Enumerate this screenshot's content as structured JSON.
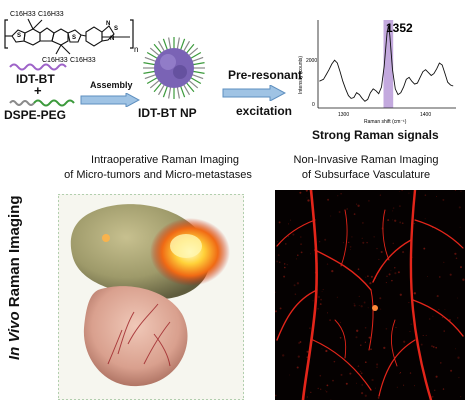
{
  "chemistry": {
    "alkyl_chains": [
      "C16H33",
      "C16H33",
      "C16H33",
      "C16H33"
    ],
    "repeat_unit": "n"
  },
  "labels": {
    "idt_bt": "IDT-BT",
    "plus": "+",
    "dspe_peg": "DSPE-PEG",
    "assembly": "Assembly",
    "nanoparticle": "IDT-BT NP",
    "pre_resonant_line1": "Pre-resonant",
    "pre_resonant_line2": "excitation",
    "strong_raman": "Strong Raman signals"
  },
  "spectrum": {
    "peak_label": "1352",
    "ylabel": "Intensity (counts)",
    "xlabel": "Raman shift (cm⁻¹)",
    "y_ticks": [
      "2000",
      "0"
    ],
    "x_ticks": [
      "1300",
      "1400"
    ]
  },
  "chart_data": {
    "type": "line",
    "xlabel": "Raman shift (cm⁻¹)",
    "ylabel": "Intensity (counts)",
    "xlim": [
      1250,
      1450
    ],
    "ylim": [
      -200,
      4400
    ],
    "highlight_band": [
      1345,
      1359
    ],
    "annotations": [
      "1352"
    ],
    "series": [
      {
        "x": [
          1252,
          1258,
          1262,
          1266,
          1270,
          1274,
          1278,
          1282,
          1286,
          1290,
          1294,
          1298,
          1302,
          1306,
          1310,
          1314,
          1318,
          1322,
          1326,
          1330,
          1334,
          1338,
          1342,
          1346,
          1350,
          1352,
          1354,
          1358,
          1362,
          1366,
          1370,
          1374,
          1378,
          1382,
          1386,
          1390,
          1394,
          1398,
          1402,
          1406,
          1410,
          1414,
          1418,
          1422,
          1426,
          1430,
          1434,
          1438,
          1442,
          1446
        ],
        "y": [
          1200,
          1300,
          1550,
          1800,
          2100,
          2300,
          2150,
          1700,
          1200,
          800,
          450,
          300,
          350,
          600,
          500,
          300,
          150,
          250,
          600,
          800,
          700,
          550,
          900,
          2000,
          3700,
          4100,
          3600,
          1800,
          800,
          500,
          600,
          900,
          1300,
          1400,
          1200,
          1050,
          1100,
          1400,
          1700,
          1800,
          1650,
          1500,
          1600,
          1850,
          2150,
          2050,
          1600,
          1150,
          1000,
          950
        ]
      }
    ]
  },
  "panels": {
    "left_title_line1": "Intraoperative Raman Imaging",
    "left_title_line2": "of Micro-tumors and Micro-metastases",
    "right_title_line1": "Non-Invasive Raman Imaging",
    "right_title_line2": "of Subsurface Vasculature",
    "side_label_italic": "In Vivo",
    "side_label_rest": " Raman Imaging"
  },
  "colors": {
    "arrow_fill": "#9fc3e4",
    "arrow_stroke": "#5e8fbf",
    "highlight_band": "#b89ad8",
    "vessel_red": "#e3251a",
    "idt_chain_purple": "#9e63c8",
    "peg_green": "#3c9a3c",
    "nanoparticle_core": "#7a63b5"
  }
}
